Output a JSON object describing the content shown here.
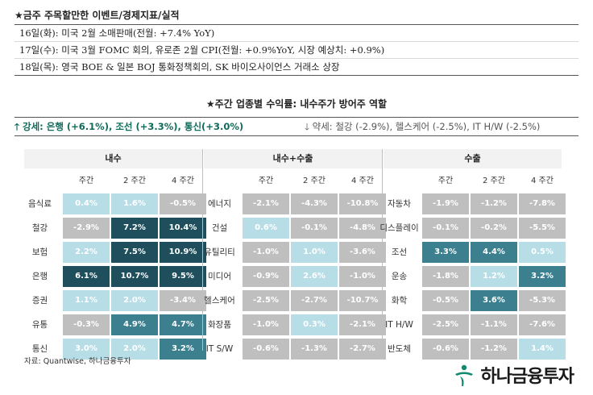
{
  "events": {
    "title": "★금주 주목할만한 이벤트/경제지표/실적",
    "items": [
      "16일(화): 미국 2월 소매판매(전월: +7.4% YoY)",
      "17일(수): 미국 3월 FOMC 회의, 유로존 2월 CPI(전월: +0.9%YoY, 시장 예상치: +0.9%)",
      "18일(목): 영국 BOE & 일본 BOJ 통화정책회의, SK 바이오사이언스 거래소 상장"
    ]
  },
  "weekly": {
    "title": "★주간 업종별 수익률: 내수주가 방어주 역할",
    "strong": "강세: 은행 (+6.1%), 조선 (+3.3%), 통신(+3.0%)",
    "weak": "약세: 철강 (-2.9%), 헬스케어 (-2.5%), IT H/W (-2.5%)"
  },
  "colors": {
    "dark": "#1f4f5c",
    "mid": "#3c7f8f",
    "light": "#b7dde6",
    "gray": "#bfbfbf",
    "green": "#0f6b5a"
  },
  "chart_data": {
    "type": "table",
    "col_headers": [
      "주간",
      "2 주간",
      "4 주간"
    ],
    "blocks": [
      {
        "name": "내수",
        "rows": [
          {
            "label": "음식료",
            "values": [
              "0.4%",
              "1.6%",
              "-0.5%"
            ],
            "shade": [
              "light",
              "light",
              "gray"
            ]
          },
          {
            "label": "철강",
            "values": [
              "-2.9%",
              "7.2%",
              "10.4%"
            ],
            "shade": [
              "gray",
              "dark",
              "dark"
            ]
          },
          {
            "label": "보험",
            "values": [
              "2.2%",
              "7.5%",
              "10.9%"
            ],
            "shade": [
              "light",
              "dark",
              "dark"
            ]
          },
          {
            "label": "은행",
            "values": [
              "6.1%",
              "10.7%",
              "9.5%"
            ],
            "shade": [
              "dark",
              "dark",
              "dark"
            ]
          },
          {
            "label": "증권",
            "values": [
              "1.1%",
              "2.0%",
              "-3.4%"
            ],
            "shade": [
              "light",
              "light",
              "gray"
            ]
          },
          {
            "label": "유통",
            "values": [
              "-0.3%",
              "4.9%",
              "4.7%"
            ],
            "shade": [
              "gray",
              "mid",
              "mid"
            ]
          },
          {
            "label": "통신",
            "values": [
              "3.0%",
              "2.0%",
              "3.2%"
            ],
            "shade": [
              "light",
              "light",
              "mid"
            ]
          }
        ]
      },
      {
        "name": "내수+수출",
        "rows": [
          {
            "label": "에너지",
            "values": [
              "-2.1%",
              "-4.3%",
              "-10.8%"
            ],
            "shade": [
              "gray",
              "gray",
              "gray"
            ]
          },
          {
            "label": "건설",
            "values": [
              "0.6%",
              "-0.1%",
              "-4.8%"
            ],
            "shade": [
              "light",
              "gray",
              "gray"
            ]
          },
          {
            "label": "유틸리티",
            "values": [
              "-1.0%",
              "1.0%",
              "-3.6%"
            ],
            "shade": [
              "gray",
              "light",
              "gray"
            ]
          },
          {
            "label": "미디어",
            "values": [
              "-0.9%",
              "2.6%",
              "-1.0%"
            ],
            "shade": [
              "gray",
              "light",
              "gray"
            ]
          },
          {
            "label": "헬스케어",
            "values": [
              "-2.5%",
              "-2.7%",
              "-10.7%"
            ],
            "shade": [
              "gray",
              "gray",
              "gray"
            ]
          },
          {
            "label": "화장품",
            "values": [
              "-1.0%",
              "0.3%",
              "-2.1%"
            ],
            "shade": [
              "gray",
              "light",
              "gray"
            ]
          },
          {
            "label": "IT S/W",
            "values": [
              "-0.6%",
              "-1.3%",
              "-2.7%"
            ],
            "shade": [
              "gray",
              "gray",
              "gray"
            ]
          }
        ]
      },
      {
        "name": "수출",
        "rows": [
          {
            "label": "자동차",
            "values": [
              "-1.9%",
              "-1.2%",
              "-7.8%"
            ],
            "shade": [
              "gray",
              "gray",
              "gray"
            ]
          },
          {
            "label": "디스플레이",
            "values": [
              "-0.1%",
              "-0.2%",
              "-5.5%"
            ],
            "shade": [
              "gray",
              "gray",
              "gray"
            ]
          },
          {
            "label": "조선",
            "values": [
              "3.3%",
              "4.4%",
              "0.5%"
            ],
            "shade": [
              "mid",
              "mid",
              "light"
            ]
          },
          {
            "label": "운송",
            "values": [
              "-1.8%",
              "1.2%",
              "3.2%"
            ],
            "shade": [
              "gray",
              "light",
              "mid"
            ]
          },
          {
            "label": "화학",
            "values": [
              "-0.5%",
              "3.6%",
              "-5.3%"
            ],
            "shade": [
              "gray",
              "mid",
              "gray"
            ]
          },
          {
            "label": "IT H/W",
            "values": [
              "-2.5%",
              "-1.1%",
              "-7.6%"
            ],
            "shade": [
              "gray",
              "gray",
              "gray"
            ]
          },
          {
            "label": "반도체",
            "values": [
              "-0.6%",
              "-1.2%",
              "1.4%"
            ],
            "shade": [
              "gray",
              "gray",
              "light"
            ]
          }
        ]
      }
    ]
  },
  "source": "자료: Quantwise, 하나금융투자",
  "logo": {
    "text": "하나금융투자",
    "icon": "hana-logo-icon"
  }
}
